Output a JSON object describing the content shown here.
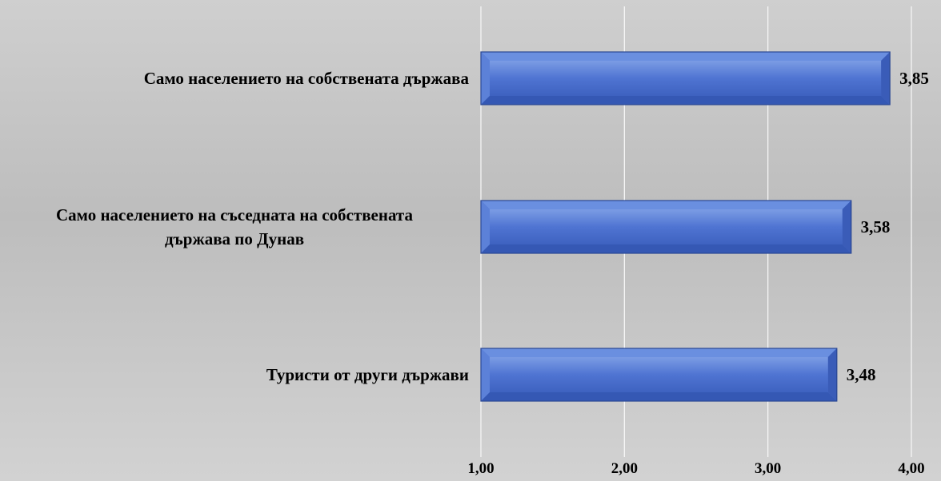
{
  "chart_data": {
    "type": "bar",
    "orientation": "horizontal",
    "categories": [
      "Само населението на собствената държава",
      "Само населението на съседната на собствената държава по Дунав",
      "Туристи от други държави"
    ],
    "category_lines": [
      [
        "Само населението на собствената държава"
      ],
      [
        "Само населението на съседната на собствената",
        "държава по Дунав"
      ],
      [
        "Туристи от други държави"
      ]
    ],
    "values": [
      3.85,
      3.58,
      3.48
    ],
    "value_labels": [
      "3,85",
      "3,58",
      "3,48"
    ],
    "xlim": [
      1.0,
      4.0
    ],
    "x_ticks": [
      1.0,
      2.0,
      3.0,
      4.0
    ],
    "x_tick_labels": [
      "1,00",
      "2,00",
      "3,00",
      "4,00"
    ],
    "grid": true,
    "legend": "none",
    "colors": {
      "bar_light": "#6a8fe0",
      "bar_mid": "#4f74d2",
      "bar_dark": "#3558b4",
      "bar_edge": "#2a4794"
    }
  }
}
